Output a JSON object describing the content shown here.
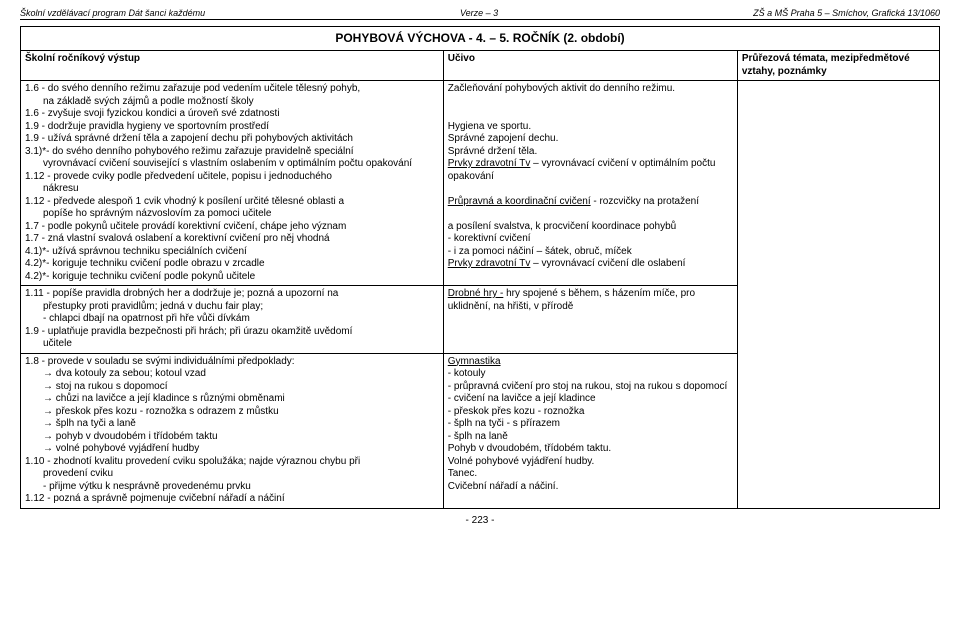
{
  "header": {
    "left": "Školní vzdělávací program Dát šanci každému",
    "center": "Verze – 3",
    "right": "ZŠ a MŠ Praha 5 – Smíchov, Grafická 13/1060"
  },
  "title": "POHYBOVÁ VÝCHOVA - 4. – 5. ROČNÍK (2. období)",
  "col_headers": {
    "left": "Školní ročníkový výstup",
    "mid": "Učivo",
    "right": "Průřezová témata, mezipředmětové vztahy, poznámky"
  },
  "row1": {
    "left": {
      "l1": "1.6 - do svého denního režimu zařazuje pod vedením učitele tělesný pohyb,",
      "l1b": "na základě svých zájmů a podle možností školy",
      "l2": "1.6 - zvyšuje svoji fyzickou kondici a úroveň své zdatnosti",
      "l3": "1.9 - dodržuje pravidla hygieny ve sportovním prostředí",
      "l4": "1.9 - užívá správné držení těla a zapojení dechu při pohybových  aktivitách",
      "l5": "3.1)*- do svého denního pohybového režimu zařazuje pravidelně speciální",
      "l5b": "vyrovnávací cvičení související s vlastním oslabením v optimálním počtu opakování",
      "l6": "1.12 - provede cviky podle předvedení učitele, popisu i jednoduchého",
      "l6b": "nákresu",
      "l7": "1.12 - předvede alespoň 1 cvik vhodný k posílení určité tělesné  oblasti a",
      "l7b": "popíše ho správným názvoslovím za pomoci učitele",
      "l8": "1.7 - podle pokynů učitele provádí korektivní cvičení, chápe jeho význam",
      "l9": "1.7 - zná vlastní svalová oslabení a korektivní cvičení pro něj vhodná",
      "l10": "4.1)*- užívá správnou techniku speciálních cvičení",
      "l11": "4.2)*- koriguje techniku cvičení podle obrazu v zrcadle",
      "l12": "4.2)*- koriguje techniku cvičení podle pokynů učitele"
    },
    "mid": {
      "m1": "Začleňování pohybových aktivit do denního režimu.",
      "m2": "Hygiena ve sportu.",
      "m3": "Správné zapojení dechu.",
      "m4": "Správné držení těla.",
      "m5a": "Prvky zdravotní Tv",
      "m5b": " – vyrovnávací cvičení v optimálním počtu opakování",
      "m6a": "Průpravná a koordinační cvičení",
      "m6b": " - rozcvičky na protažení",
      "m7": "a posílení svalstva, k procvičení koordinace pohybů",
      "m8": "- korektivní cvičení",
      "m9": "- i za pomoci náčiní – šátek, obruč, míček",
      "m10a": "Prvky zdravotní Tv",
      "m10b": " – vyrovnávací cvičení dle oslabení"
    }
  },
  "row2": {
    "left": {
      "l1": "1.11 - popíše pravidla drobných her a dodržuje je; pozná a upozorní na",
      "l1b": "přestupky proti pravidlům; jedná v duchu fair play;",
      "l2": "- chlapci dbají na opatrnost při hře vůči dívkám",
      "l3": "1.9 - uplatňuje pravidla bezpečnosti při hrách; při úrazu okamžitě uvědomí",
      "l3b": "učitele"
    },
    "mid": {
      "m1a": "Drobné hry -",
      "m1b": " hry spojené s během, s házením míče, pro uklidnění, na hřišti, v přírodě"
    }
  },
  "row3": {
    "left": {
      "l1": "1.8 - provede v souladu se svými individuálními předpoklady:",
      "arrow1": "dva kotouly za sebou; kotoul vzad",
      "arrow2": "stoj na rukou s dopomocí",
      "arrow3": "chůzi na lavičce a její kladince s různými obměnami",
      "arrow4": "přeskok přes kozu - roznožka s odrazem z můstku",
      "arrow5": "šplh na tyči a laně",
      "arrow6": "pohyb v dvoudobém i  třídobém taktu",
      "arrow7": "volné pohybové vyjádření hudby",
      "l2": "1.10 - zhodnotí kvalitu provedení cviku spolužáka; najde výraznou chybu při",
      "l2b": "provedení cviku",
      "l3": "- přijme výtku k nesprávně provedenému prvku",
      "l4": "1.12 - pozná a správně pojmenuje cvičební nářadí a náčiní"
    },
    "mid": {
      "m1": "Gymnastika",
      "m2": "- kotouly",
      "m3": "- průpravná cvičení pro stoj na rukou, stoj na rukou s dopomocí",
      "m4": "- cvičení na lavičce a její kladince",
      "m5": "- přeskok přes kozu - roznožka",
      "m6": "- šplh na tyči - s přírazem",
      "m7": "- šplh na laně",
      "m8": "Pohyb v dvoudobém, třídobém taktu.",
      "m9": "Volné pohybové vyjádření hudby.",
      "m10": "Tanec.",
      "m11": "Cvičební nářadí a náčiní."
    }
  },
  "page_number": "- 223 -"
}
